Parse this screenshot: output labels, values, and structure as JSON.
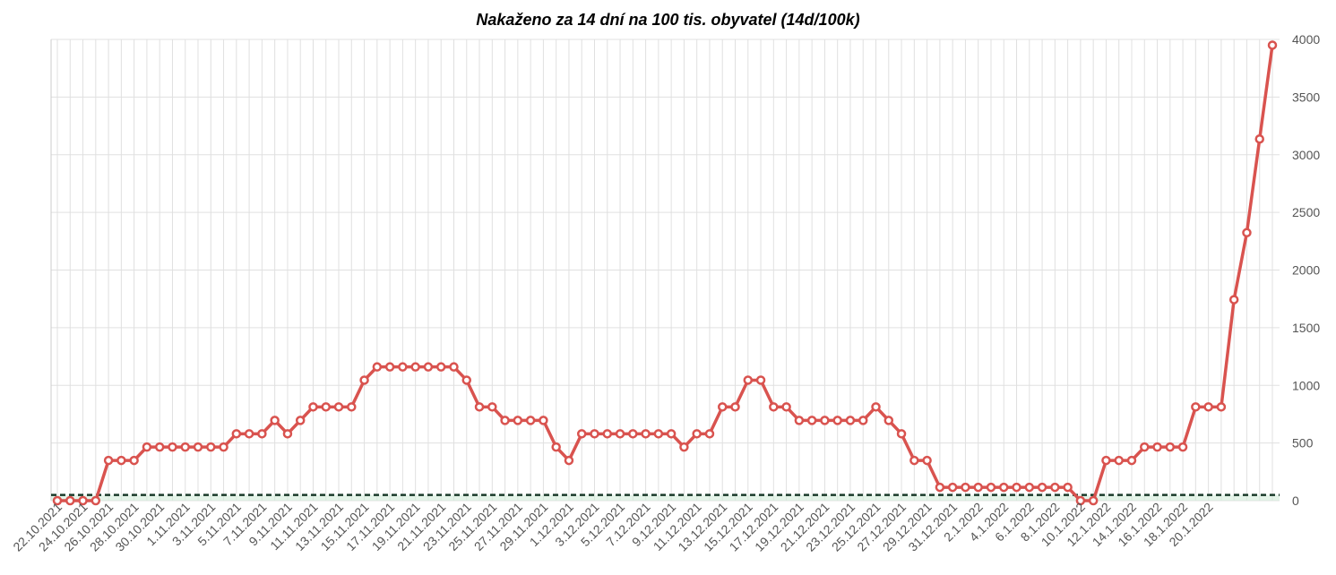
{
  "chart_data": {
    "type": "line",
    "title": "Nakaženo za 14 dní na 100 tis. obyvatel (14d/100k)",
    "xlabel": "",
    "ylabel": "",
    "ylim": [
      0,
      4000
    ],
    "yticks": [
      0,
      500,
      1000,
      1500,
      2000,
      2500,
      3000,
      3500,
      4000
    ],
    "y_axis_position": "right",
    "grid": true,
    "threshold_line": 50,
    "colors": {
      "series": "#d9534f",
      "threshold": "#1a3a2a",
      "threshold_fill": "#d4edda",
      "grid": "#e0e0e0"
    },
    "x_tick_labels": [
      "22.10.2021",
      "24.10.2021",
      "26.10.2021",
      "28.10.2021",
      "30.10.2021",
      "1.11.2021",
      "3.11.2021",
      "5.11.2021",
      "7.11.2021",
      "9.11.2021",
      "11.11.2021",
      "13.11.2021",
      "15.11.2021",
      "17.11.2021",
      "19.11.2021",
      "21.11.2021",
      "23.11.2021",
      "25.11.2021",
      "27.11.2021",
      "29.11.2021",
      "1.12.2021",
      "3.12.2021",
      "5.12.2021",
      "7.12.2021",
      "9.12.2021",
      "11.12.2021",
      "13.12.2021",
      "15.12.2021",
      "17.12.2021",
      "19.12.2021",
      "21.12.2021",
      "23.12.2021",
      "25.12.2021",
      "27.12.2021",
      "29.12.2021",
      "31.12.2021",
      "2.1.2022",
      "4.1.2022",
      "6.1.2022",
      "8.1.2022",
      "10.1.2022",
      "12.1.2022",
      "14.1.2022",
      "16.1.2022",
      "18.1.2022",
      "20.1.2022"
    ],
    "series": [
      {
        "values": [
          0,
          0,
          0,
          0,
          349,
          349,
          349,
          465,
          465,
          465,
          465,
          465,
          465,
          465,
          580,
          580,
          580,
          696,
          580,
          696,
          813,
          813,
          813,
          813,
          1045,
          1160,
          1160,
          1160,
          1160,
          1160,
          1160,
          1160,
          1045,
          813,
          813,
          696,
          696,
          696,
          696,
          465,
          349,
          580,
          580,
          580,
          580,
          580,
          580,
          580,
          580,
          465,
          580,
          580,
          813,
          813,
          1045,
          1045,
          813,
          813,
          696,
          696,
          696,
          696,
          696,
          696,
          813,
          696,
          580,
          349,
          349,
          116,
          116,
          116,
          116,
          116,
          116,
          116,
          116,
          116,
          116,
          116,
          0,
          0,
          349,
          349,
          349,
          465,
          465,
          465,
          465,
          813,
          813,
          813,
          1743,
          2324,
          3136,
          3950
        ]
      }
    ]
  }
}
